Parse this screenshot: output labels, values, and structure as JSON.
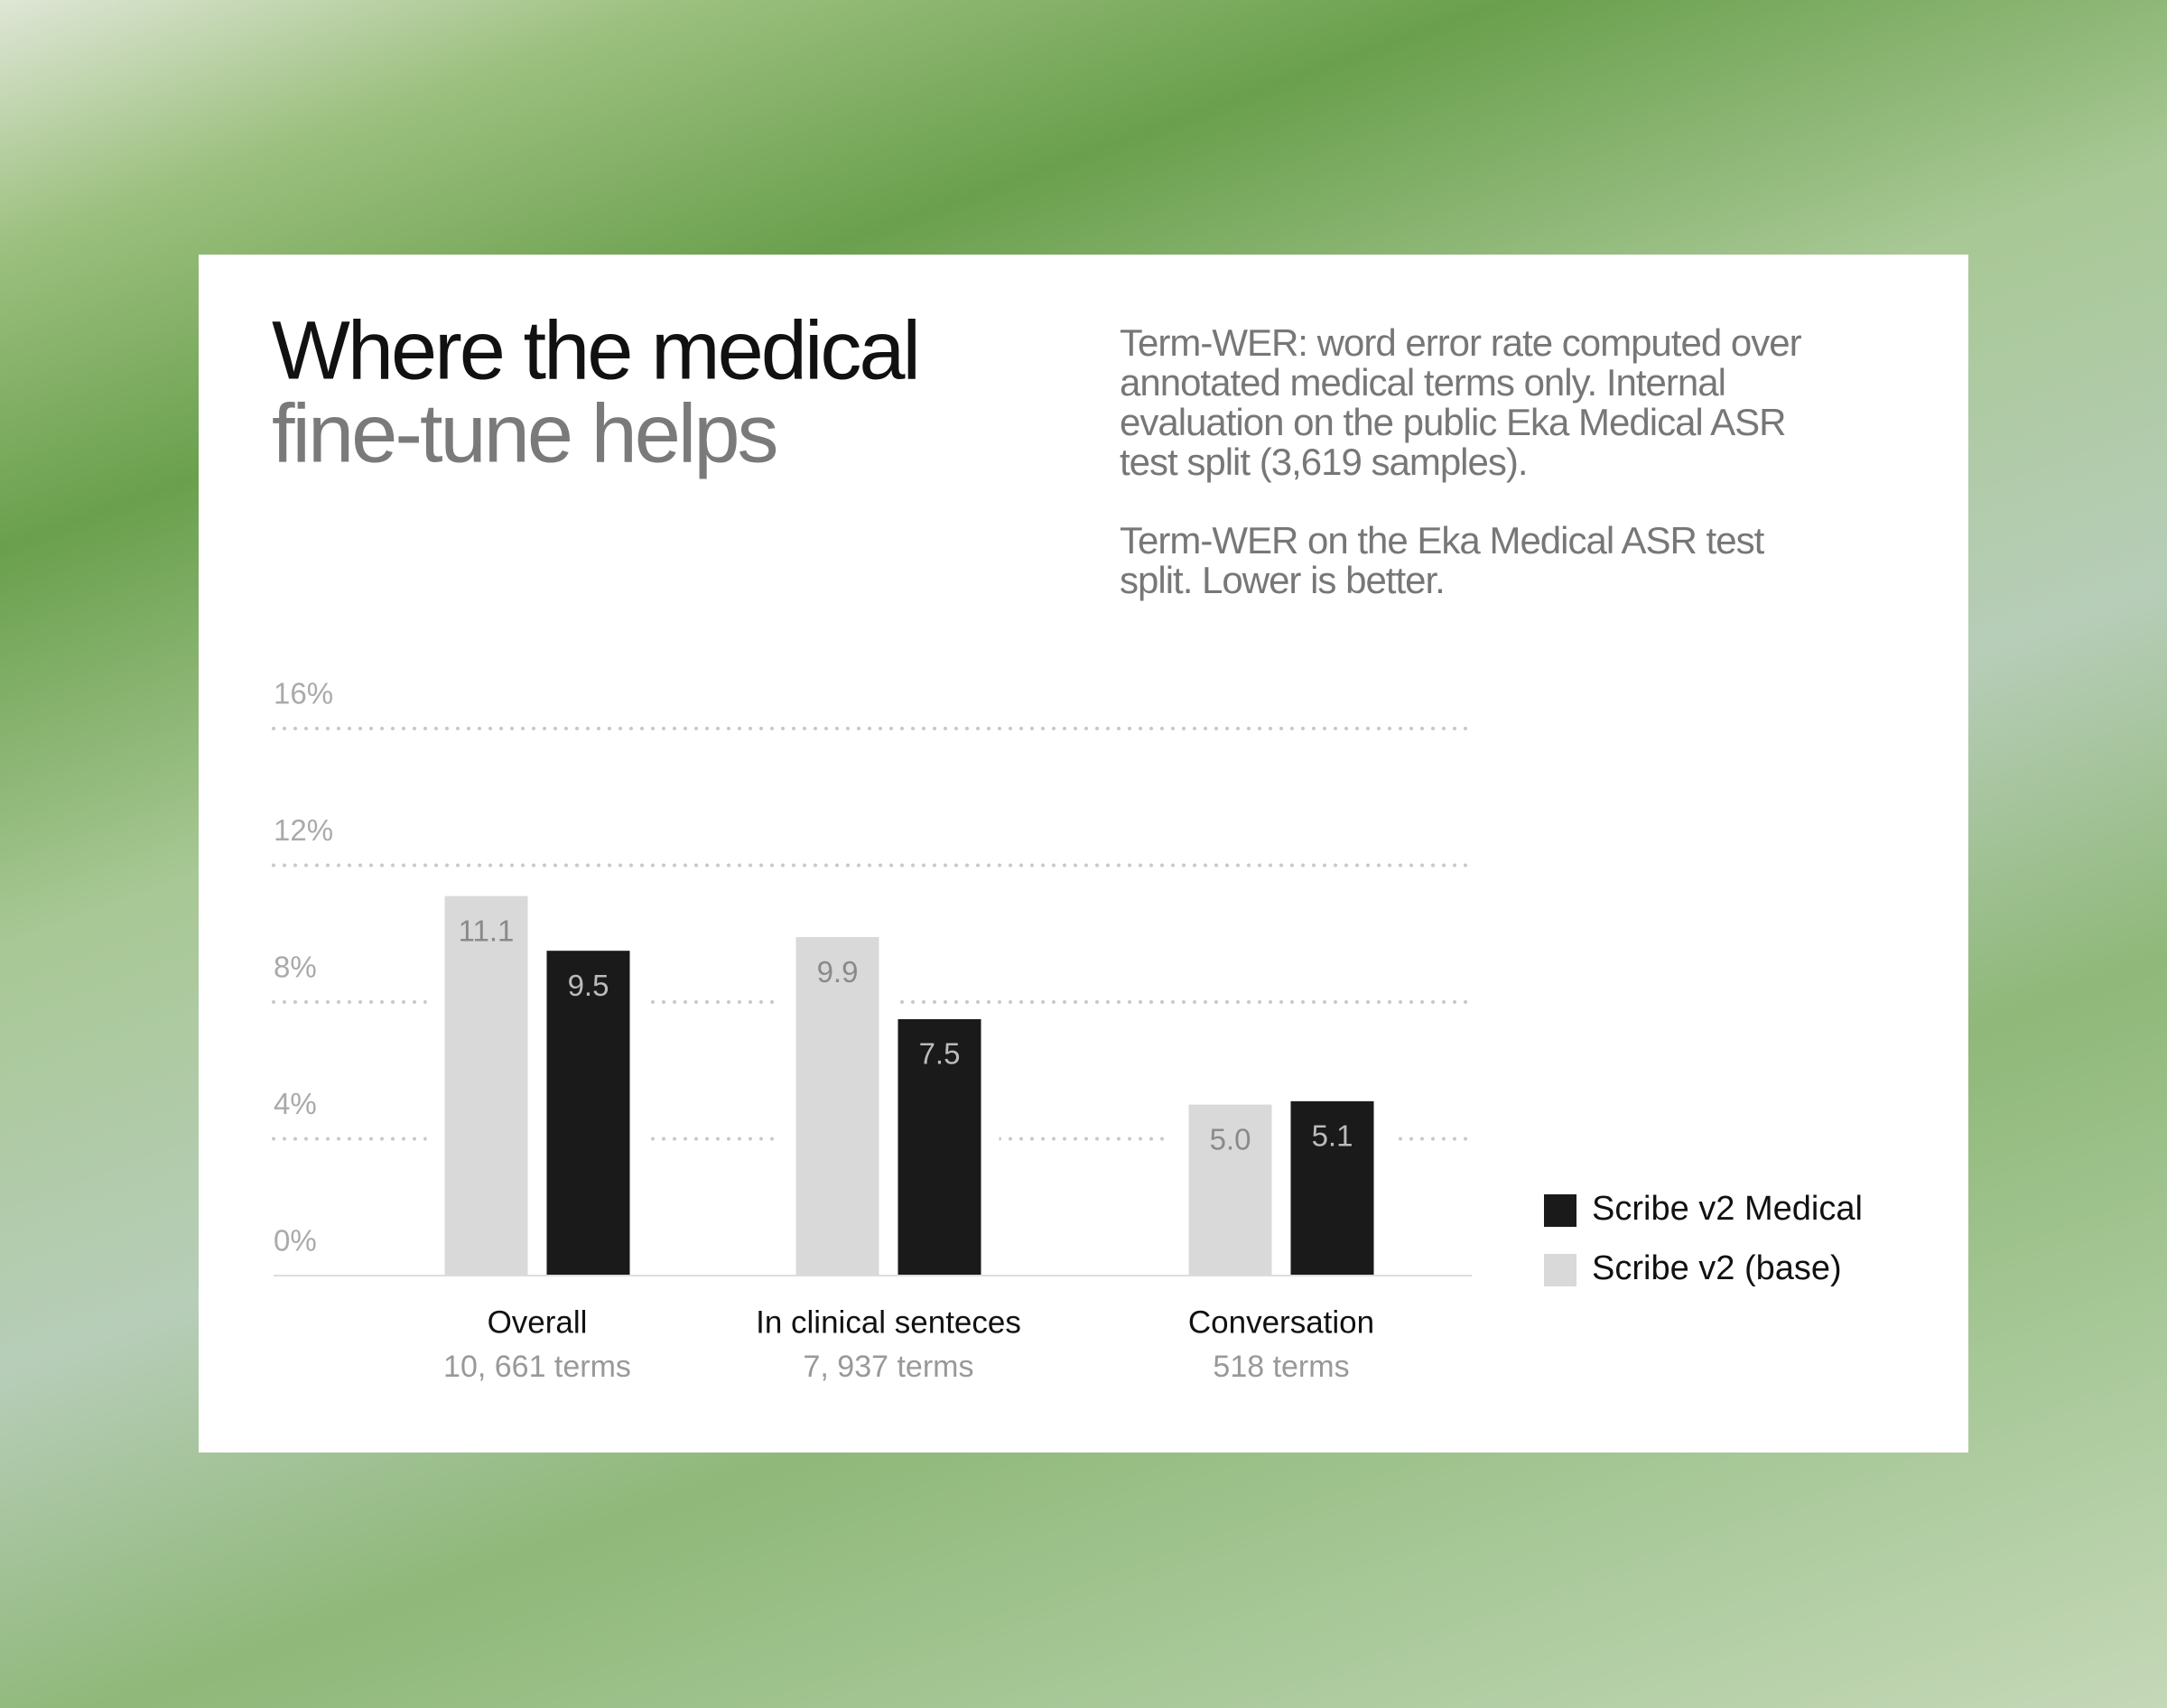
{
  "chart_data": {
    "type": "bar",
    "title": [
      "Where the medical",
      "fine-tune helps"
    ],
    "notes": [
      [
        "Term-WER: word error rate computed over",
        "annotated medical terms only. Internal",
        "evaluation on the public Eka Medical ASR",
        "test split (3,619 samples)."
      ],
      [
        "Term-WER on the Eka Medical ASR test",
        "split. Lower is better."
      ]
    ],
    "categories": [
      "Overall",
      "In clinical senteces",
      "Conversation"
    ],
    "category_subtitles": [
      "10, 661 terms",
      "7, 937 terms",
      "518 terms"
    ],
    "series": [
      {
        "name": "Scribe v2 (base)",
        "color": "#d9d9d9",
        "values": [
          11.1,
          9.9,
          5.0
        ],
        "value_labels": [
          "11.1",
          "9.9",
          "5.0"
        ]
      },
      {
        "name": "Scribe v2 Medical",
        "color": "#1a1a1a",
        "values": [
          9.5,
          7.5,
          5.1
        ]
      }
    ],
    "ylim": [
      0,
      16
    ],
    "yticks": [
      {
        "value": 0,
        "label": "0%"
      },
      {
        "value": 4,
        "label": "4%"
      },
      {
        "value": 8,
        "label": "8%"
      },
      {
        "value": 12,
        "label": "12%"
      },
      {
        "value": 16,
        "label": "16%"
      }
    ],
    "grid": true
  }
}
